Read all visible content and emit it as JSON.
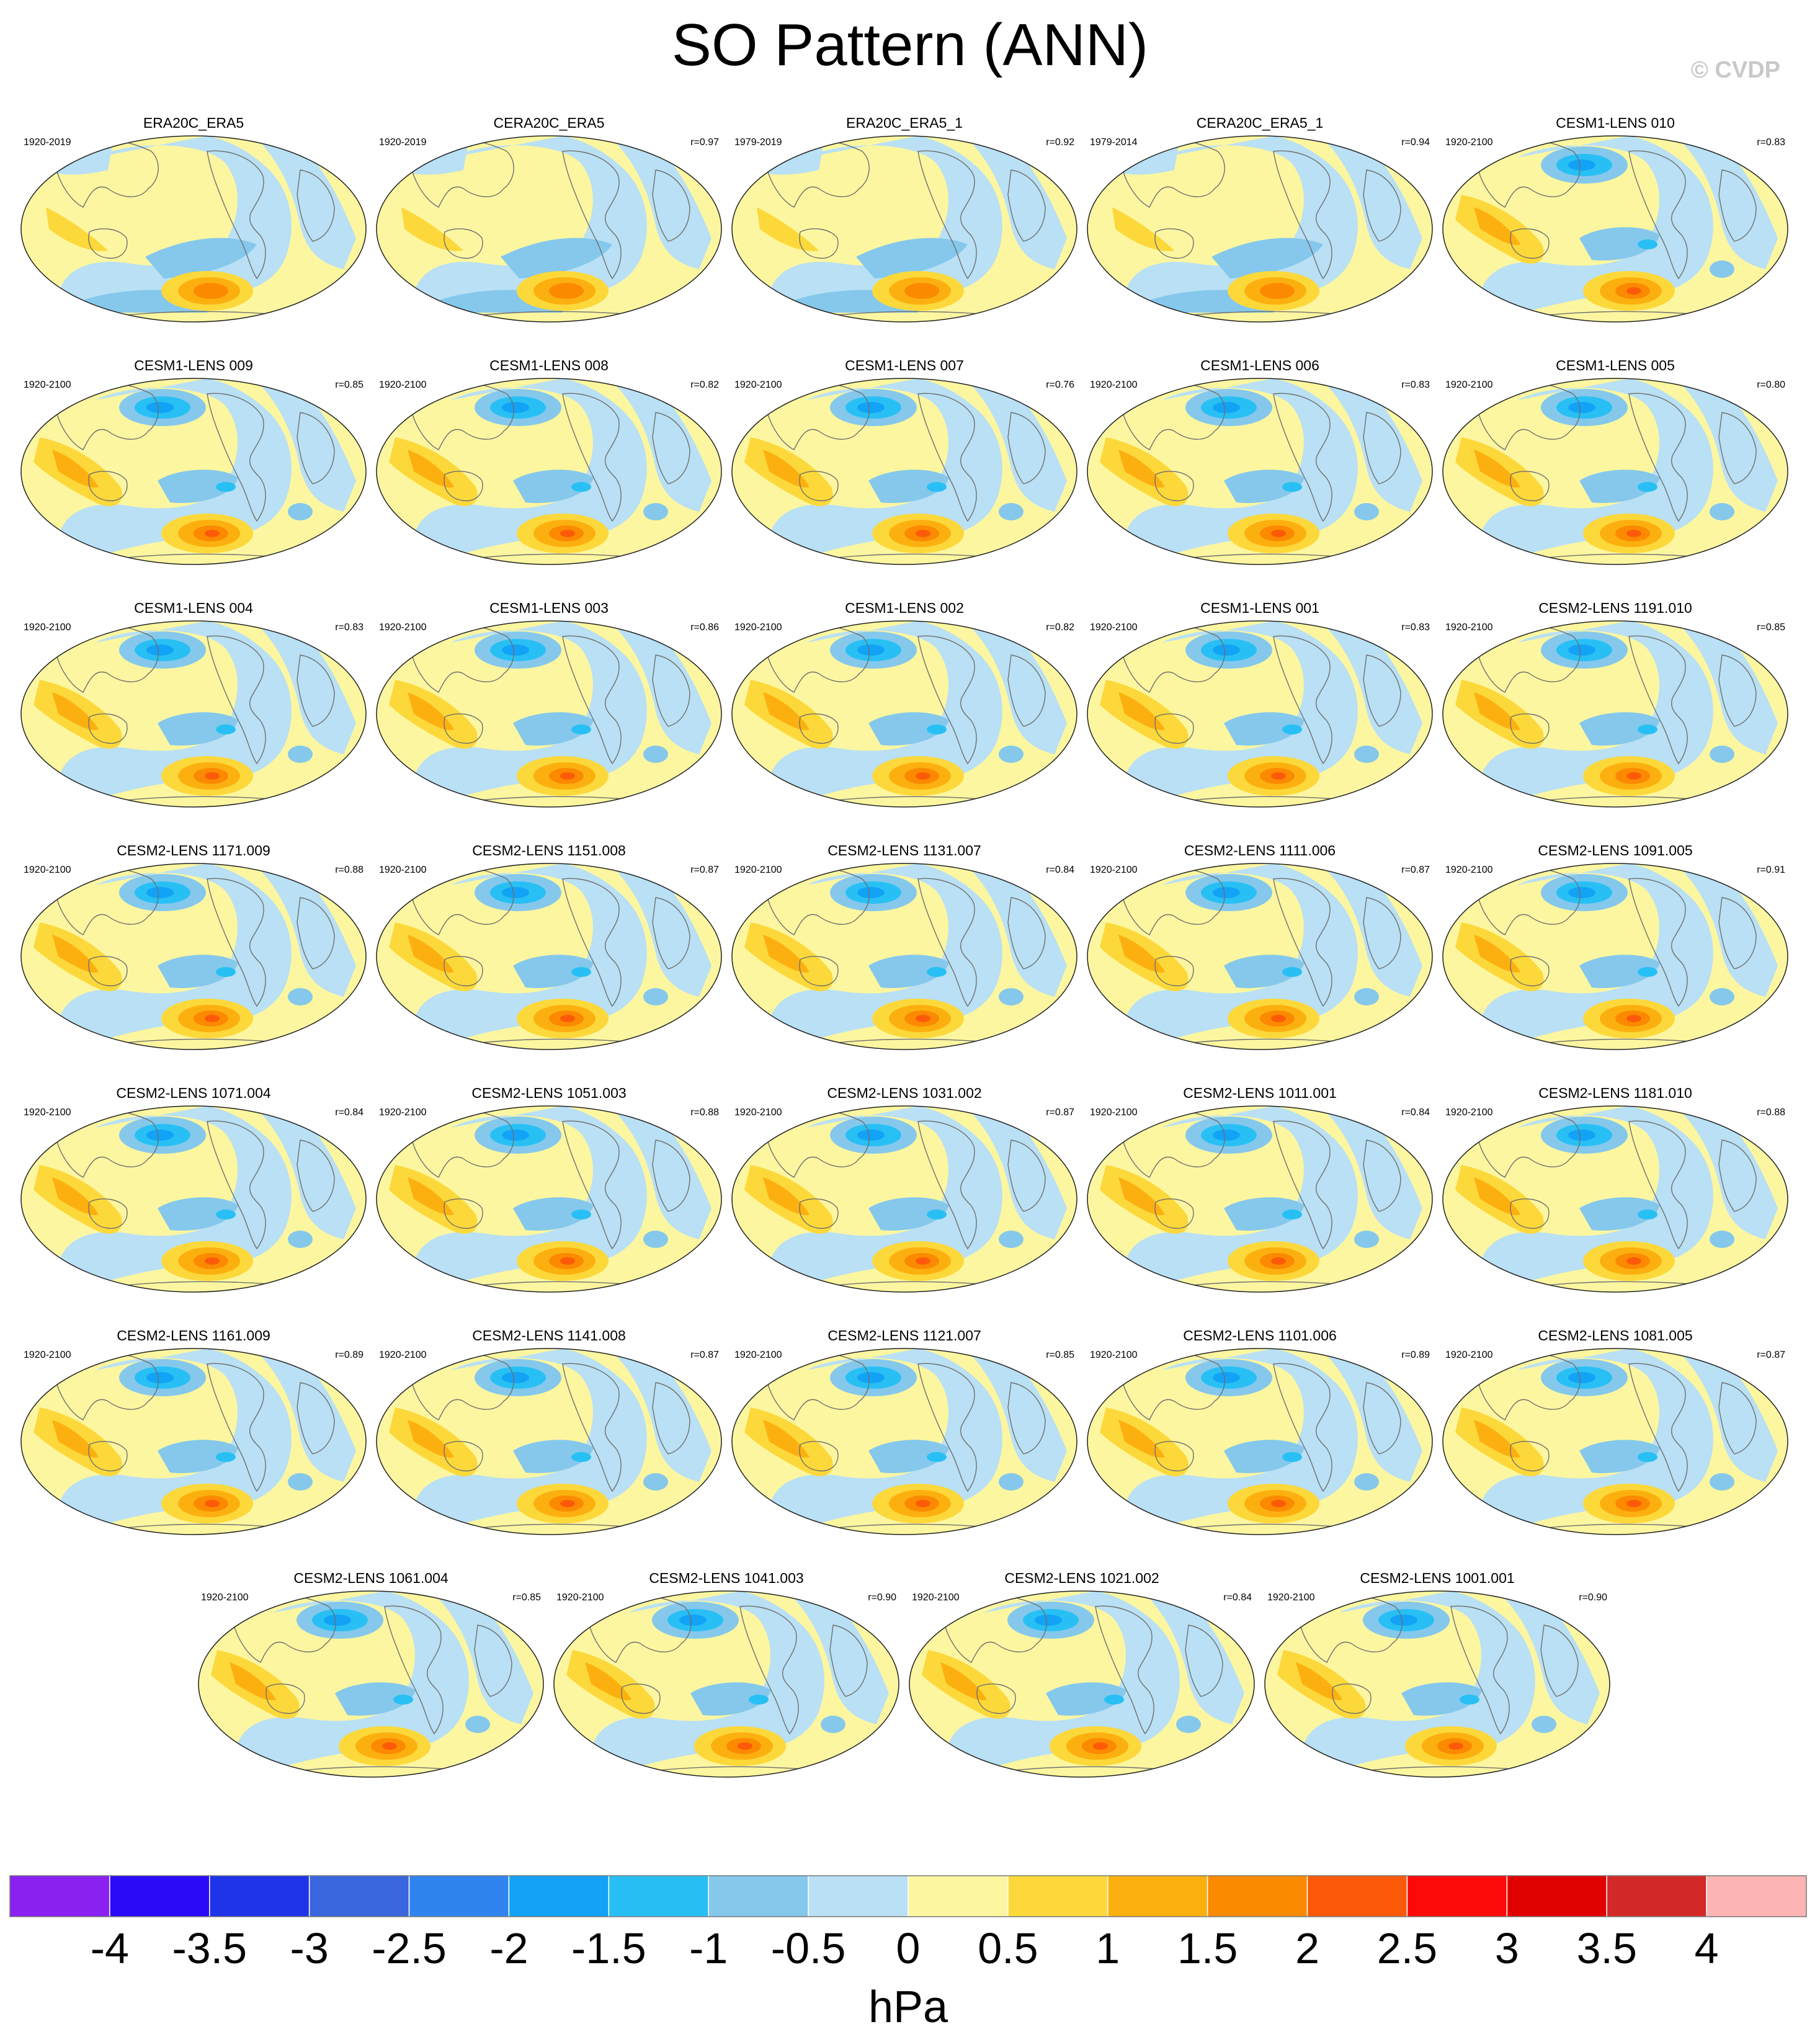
{
  "title": "SO Pattern (ANN)",
  "credit": "© CVDP",
  "chart_data": {
    "type": "contour-map-panels",
    "variable": "SO Pattern",
    "season": "ANN",
    "units": "hPa",
    "colorbar": {
      "levels": [
        "-4",
        "-3.5",
        "-3",
        "-2.5",
        "-2",
        "-1.5",
        "-1",
        "-0.5",
        "0",
        "0.5",
        "1",
        "1.5",
        "2",
        "2.5",
        "3",
        "3.5",
        "4"
      ],
      "colors": [
        "#8a21f0",
        "#2b0af8",
        "#1f33e8",
        "#3a66e0",
        "#2f84f0",
        "#12a2f6",
        "#28c0f4",
        "#85c8ec",
        "#b9e0f4",
        "#fcf6a0",
        "#fcd83a",
        "#fcb010",
        "#fc8a00",
        "#fc5a08",
        "#fc0a0a",
        "#e00000",
        "#d22828",
        "#fcb4b4"
      ]
    },
    "panels": [
      {
        "name": "ERA20C_ERA5",
        "period": "1920-2019",
        "r": ""
      },
      {
        "name": "CERA20C_ERA5",
        "period": "1920-2019",
        "r": "r=0.97"
      },
      {
        "name": "ERA20C_ERA5_1",
        "period": "1979-2019",
        "r": "r=0.92"
      },
      {
        "name": "CERA20C_ERA5_1",
        "period": "1979-2014",
        "r": "r=0.94"
      },
      {
        "name": "CESM1-LENS 010",
        "period": "1920-2100",
        "r": "r=0.83"
      },
      {
        "name": "CESM1-LENS 009",
        "period": "1920-2100",
        "r": "r=0.85"
      },
      {
        "name": "CESM1-LENS 008",
        "period": "1920-2100",
        "r": "r=0.82"
      },
      {
        "name": "CESM1-LENS 007",
        "period": "1920-2100",
        "r": "r=0.76"
      },
      {
        "name": "CESM1-LENS 006",
        "period": "1920-2100",
        "r": "r=0.83"
      },
      {
        "name": "CESM1-LENS 005",
        "period": "1920-2100",
        "r": "r=0.80"
      },
      {
        "name": "CESM1-LENS 004",
        "period": "1920-2100",
        "r": "r=0.83"
      },
      {
        "name": "CESM1-LENS 003",
        "period": "1920-2100",
        "r": "r=0.86"
      },
      {
        "name": "CESM1-LENS 002",
        "period": "1920-2100",
        "r": "r=0.82"
      },
      {
        "name": "CESM1-LENS 001",
        "period": "1920-2100",
        "r": "r=0.83"
      },
      {
        "name": "CESM2-LENS 1191.010",
        "period": "1920-2100",
        "r": "r=0.85"
      },
      {
        "name": "CESM2-LENS 1171.009",
        "period": "1920-2100",
        "r": "r=0.88"
      },
      {
        "name": "CESM2-LENS 1151.008",
        "period": "1920-2100",
        "r": "r=0.87"
      },
      {
        "name": "CESM2-LENS 1131.007",
        "period": "1920-2100",
        "r": "r=0.84"
      },
      {
        "name": "CESM2-LENS 1111.006",
        "period": "1920-2100",
        "r": "r=0.87"
      },
      {
        "name": "CESM2-LENS 1091.005",
        "period": "1920-2100",
        "r": "r=0.91"
      },
      {
        "name": "CESM2-LENS 1071.004",
        "period": "1920-2100",
        "r": "r=0.84"
      },
      {
        "name": "CESM2-LENS 1051.003",
        "period": "1920-2100",
        "r": "r=0.88"
      },
      {
        "name": "CESM2-LENS 1031.002",
        "period": "1920-2100",
        "r": "r=0.87"
      },
      {
        "name": "CESM2-LENS 1011.001",
        "period": "1920-2100",
        "r": "r=0.84"
      },
      {
        "name": "CESM2-LENS 1181.010",
        "period": "1920-2100",
        "r": "r=0.88"
      },
      {
        "name": "CESM2-LENS 1161.009",
        "period": "1920-2100",
        "r": "r=0.89"
      },
      {
        "name": "CESM2-LENS 1141.008",
        "period": "1920-2100",
        "r": "r=0.87"
      },
      {
        "name": "CESM2-LENS 1121.007",
        "period": "1920-2100",
        "r": "r=0.85"
      },
      {
        "name": "CESM2-LENS 1101.006",
        "period": "1920-2100",
        "r": "r=0.89"
      },
      {
        "name": "CESM2-LENS 1081.005",
        "period": "1920-2100",
        "r": "r=0.87"
      },
      {
        "name": "CESM2-LENS 1061.004",
        "period": "1920-2100",
        "r": "r=0.85"
      },
      {
        "name": "CESM2-LENS 1041.003",
        "period": "1920-2100",
        "r": "r=0.90"
      },
      {
        "name": "CESM2-LENS 1021.002",
        "period": "1920-2100",
        "r": "r=0.84"
      },
      {
        "name": "CESM2-LENS 1001.001",
        "period": "1920-2100",
        "r": "r=0.90"
      }
    ]
  }
}
